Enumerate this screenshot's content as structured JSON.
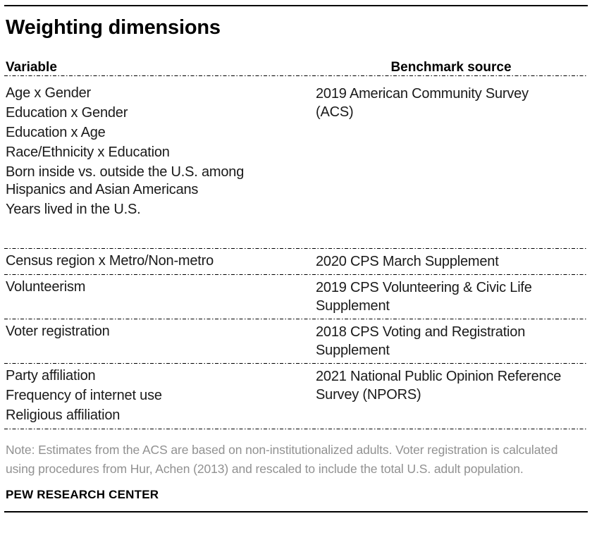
{
  "title": "Weighting dimensions",
  "table": {
    "headers": {
      "variable": "Variable",
      "source": "Benchmark source"
    },
    "rows": [
      {
        "variables": [
          "Age x Gender",
          "Education x Gender",
          "Education x Age",
          "Race/Ethnicity x Education",
          "Born inside vs. outside the U.S. among Hispanics and Asian Americans",
          "Years lived in the U.S."
        ],
        "source": "2019 American Community Survey (ACS)"
      },
      {
        "variables": [
          "Census region x Metro/Non-metro"
        ],
        "source": "2020 CPS March Supplement"
      },
      {
        "variables": [
          "Volunteerism"
        ],
        "source": "2019 CPS Volunteering & Civic Life Supplement"
      },
      {
        "variables": [
          "Voter registration"
        ],
        "source": "2018 CPS Voting and Registration Supplement"
      },
      {
        "variables": [
          "Party affiliation",
          "Frequency of internet use",
          "Religious affiliation"
        ],
        "source": "2021 National Public Opinion Reference Survey (NPORS)"
      }
    ]
  },
  "note": "Note: Estimates from the ACS are based on non-institutionalized adults. Voter registration is calculated using procedures from Hur, Achen (2013) and rescaled to include the total U.S. adult population.",
  "footer": "PEW RESEARCH CENTER",
  "colors": {
    "text": "#1a1a1a",
    "title": "#000000",
    "note_text": "#919191",
    "rule": "#000000",
    "background": "#ffffff"
  }
}
